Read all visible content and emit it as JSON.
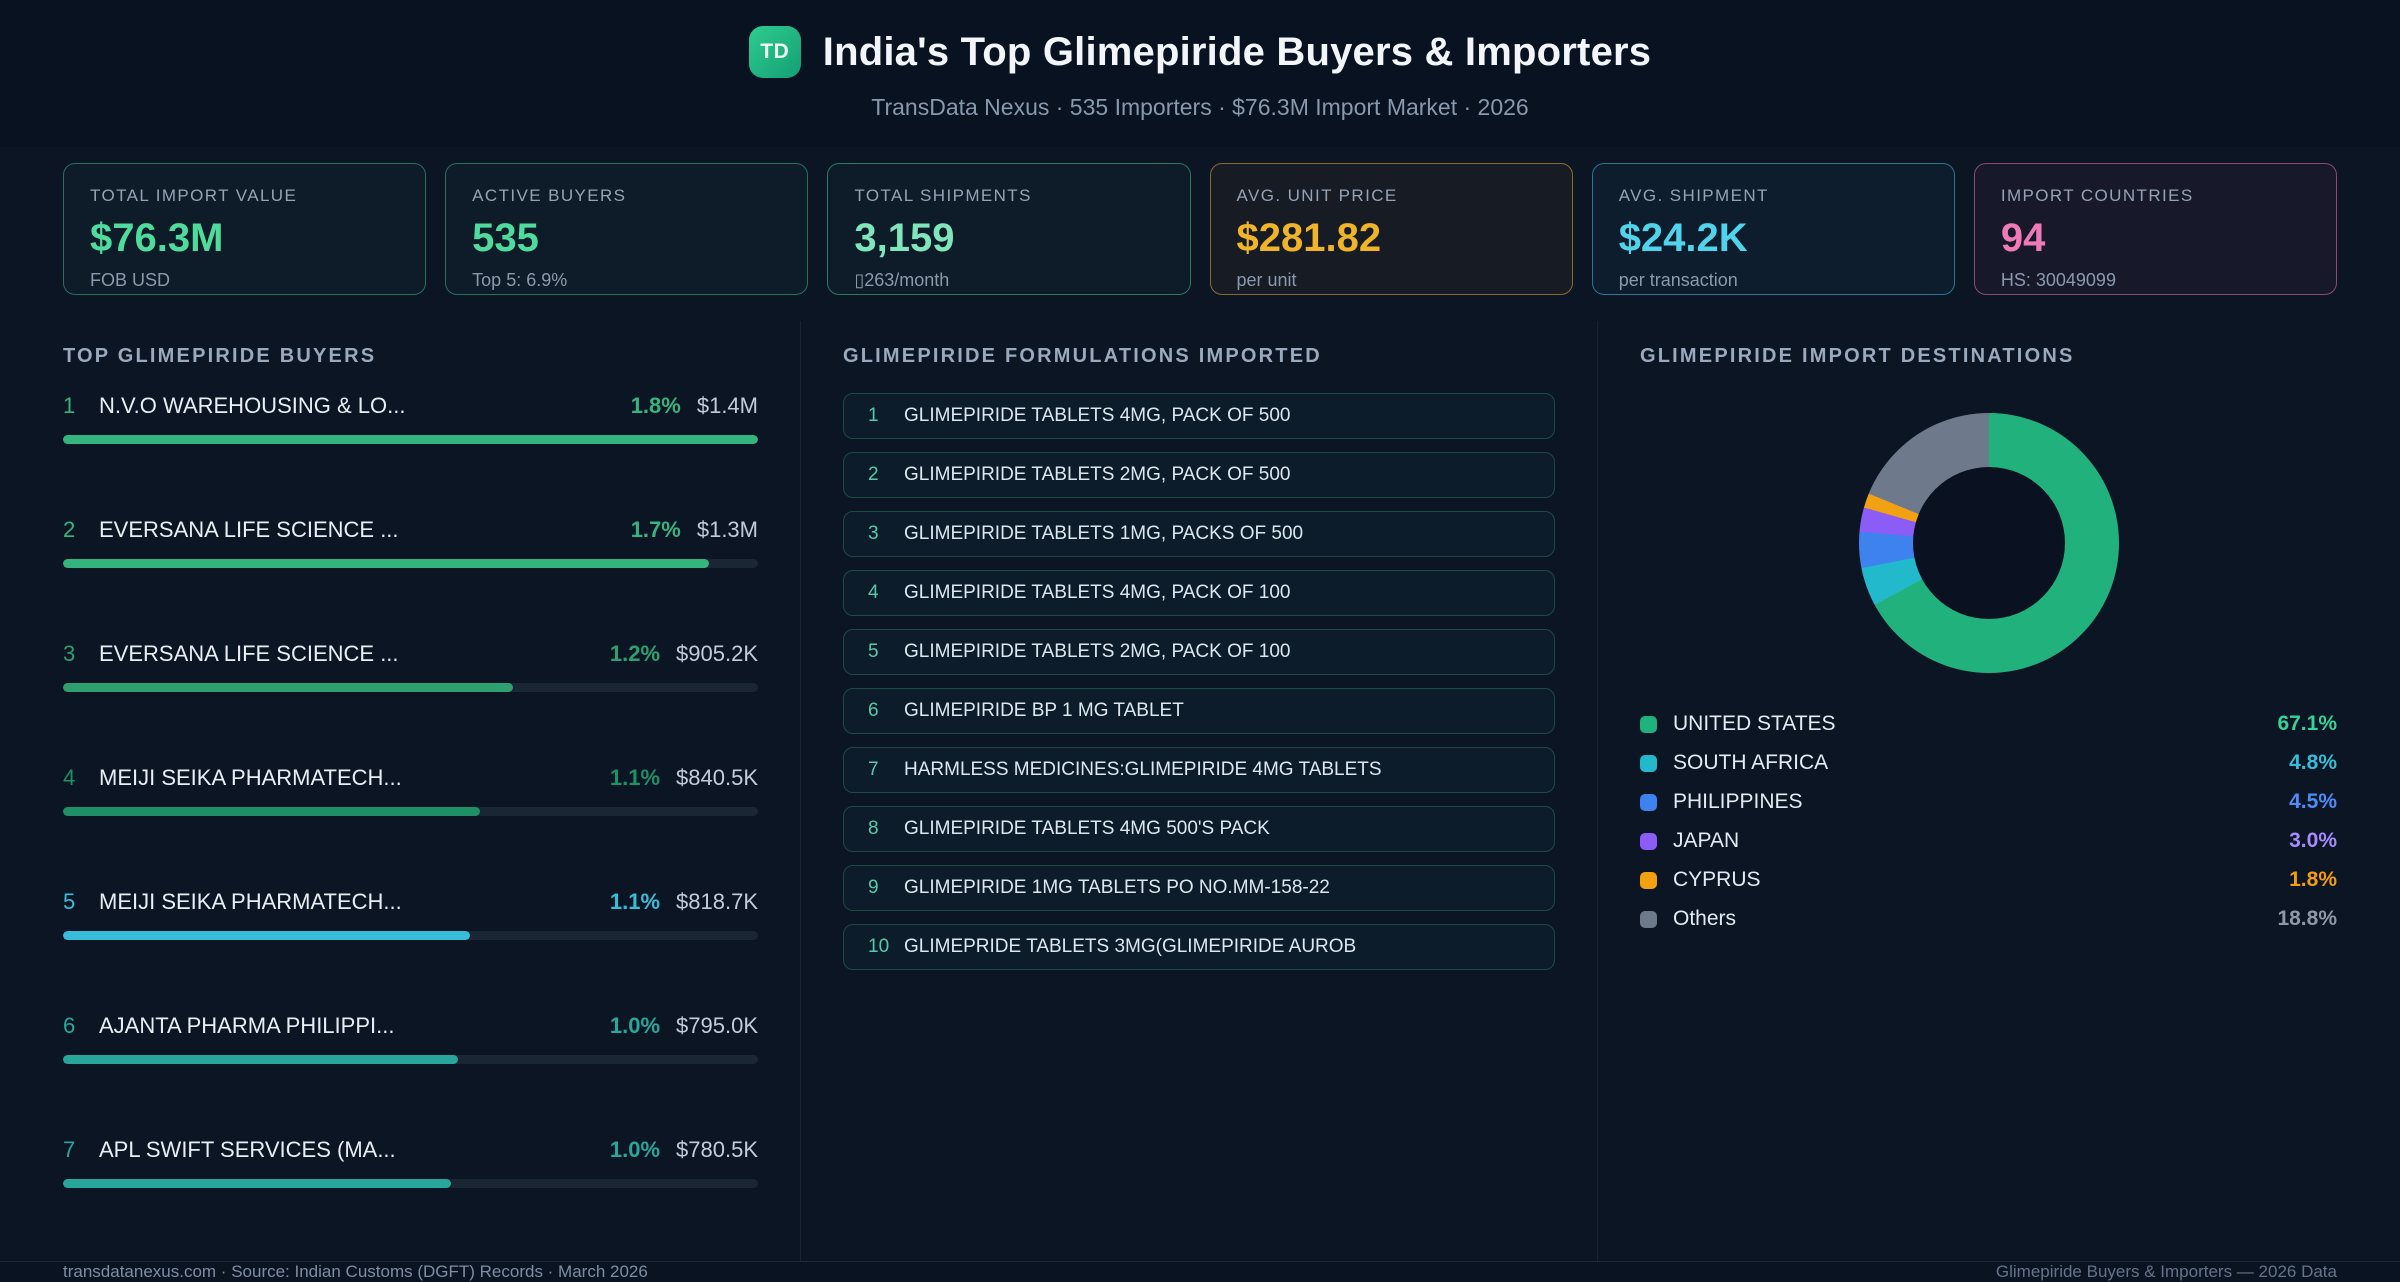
{
  "brand": {
    "logo_text": "TD",
    "accent_from": "#12b377",
    "accent_to": "#0cb7d0"
  },
  "header": {
    "title": "India's Top Glimepiride Buyers & Importers",
    "subtitle": "TransData Nexus · 535 Importers · $76.3M Import Market · 2026"
  },
  "stats": [
    {
      "label": "TOTAL IMPORT VALUE",
      "value": "$76.3M",
      "sub": "FOB USD",
      "value_color": "#4fdb9c",
      "border_color": "#27705c",
      "bg": "rgba(45,212,150,0.04)"
    },
    {
      "label": "ACTIVE BUYERS",
      "value": "535",
      "sub": "Top 5: 6.9%",
      "value_color": "#4fdb9c",
      "border_color": "#27705c",
      "bg": "rgba(45,212,150,0.04)"
    },
    {
      "label": "TOTAL SHIPMENTS",
      "value": "3,159",
      "sub": "▯263/month",
      "value_color": "#7fe5ba",
      "border_color": "#2a7a5e",
      "bg": "rgba(45,212,150,0.04)"
    },
    {
      "label": "AVG. UNIT PRICE",
      "value": "$281.82",
      "sub": "per unit",
      "value_color": "#f0b429",
      "border_color": "#8a6b2e",
      "bg": "rgba(240,180,41,0.05)"
    },
    {
      "label": "AVG. SHIPMENT",
      "value": "$24.2K",
      "sub": "per transaction",
      "value_color": "#4fd4ec",
      "border_color": "#27768e",
      "bg": "rgba(56,189,216,0.05)"
    },
    {
      "label": "IMPORT COUNTRIES",
      "value": "94",
      "sub": "HS: 30049099",
      "value_color": "#f07ab8",
      "border_color": "#8a4a6e",
      "bg": "rgba(236,121,180,0.05)"
    }
  ],
  "buyers": {
    "section_title": "TOP GLIMEPIRIDE BUYERS",
    "rows": [
      {
        "rank": "1",
        "name": "N.V.O WAREHOUSING & LO...",
        "pct": "1.8%",
        "value": "$1.4M",
        "bar_pct": 100,
        "color": "#35b57e"
      },
      {
        "rank": "2",
        "name": "EVERSANA LIFE SCIENCE ...",
        "pct": "1.7%",
        "value": "$1.3M",
        "bar_pct": 92.9,
        "color": "#35b57e"
      },
      {
        "rank": "3",
        "name": "EVERSANA LIFE SCIENCE ...",
        "pct": "1.2%",
        "value": "$905.2K",
        "bar_pct": 64.7,
        "color": "#2ea06f"
      },
      {
        "rank": "4",
        "name": "MEIJI SEIKA PHARMATECH...",
        "pct": "1.1%",
        "value": "$840.5K",
        "bar_pct": 60.0,
        "color": "#1e9066"
      },
      {
        "rank": "5",
        "name": "MEIJI SEIKA PHARMATECH...",
        "pct": "1.1%",
        "value": "$818.7K",
        "bar_pct": 58.5,
        "color": "#38bdd8"
      },
      {
        "rank": "6",
        "name": "AJANTA PHARMA PHILIPPI...",
        "pct": "1.0%",
        "value": "$795.0K",
        "bar_pct": 56.8,
        "color": "#27a79b"
      },
      {
        "rank": "7",
        "name": "APL SWIFT SERVICES (MA...",
        "pct": "1.0%",
        "value": "$780.5K",
        "bar_pct": 55.8,
        "color": "#27a79b"
      }
    ]
  },
  "formulations": {
    "section_title": "GLIMEPIRIDE FORMULATIONS IMPORTED",
    "items": [
      "GLIMEPIRIDE TABLETS 4MG, PACK OF 500",
      "GLIMEPIRIDE TABLETS 2MG, PACK OF 500",
      "GLIMEPIRIDE TABLETS 1MG, PACKS OF 500",
      "GLIMEPIRIDE TABLETS 4MG, PACK OF 100",
      "GLIMEPIRIDE TABLETS 2MG, PACK OF 100",
      "GLIMEPIRIDE BP 1 MG TABLET",
      "HARMLESS MEDICINES:GLIMEPIRIDE 4MG TABLETS",
      "GLIMEPIRIDE TABLETS 4MG 500'S PACK",
      "GLIMEPIRIDE 1MG TABLETS PO NO.MM-158-22",
      "GLIMEPRIDE TABLETS 3MG(GLIMEPIRIDE AUROB"
    ]
  },
  "destinations": {
    "section_title": "GLIMEPIRIDE IMPORT DESTINATIONS"
  },
  "chart_data": [
    {
      "type": "pie",
      "title": "GLIMEPIRIDE IMPORT DESTINATIONS",
      "donut": true,
      "legend_position": "bottom",
      "series": [
        {
          "label": "UNITED STATES",
          "value": 67.1,
          "color": "#21b17c",
          "text_color": "#34d399"
        },
        {
          "label": "SOUTH AFRICA",
          "value": 4.8,
          "color": "#23b9cd",
          "text_color": "#38bdd8"
        },
        {
          "label": "PHILIPPINES",
          "value": 4.5,
          "color": "#3e82f0",
          "text_color": "#4d8df7"
        },
        {
          "label": "JAPAN",
          "value": 3.0,
          "color": "#8b5cf6",
          "text_color": "#a78bfa"
        },
        {
          "label": "CYPRUS",
          "value": 1.8,
          "color": "#f2a113",
          "text_color": "#f59e0b"
        },
        {
          "label": "Others",
          "value": 18.8,
          "color": "#6e7a8b",
          "text_color": "#8d99a8"
        }
      ]
    },
    {
      "type": "bar",
      "title": "TOP GLIMEPIRIDE BUYERS",
      "categories": [
        "N.V.O WAREHOUSING & LO...",
        "EVERSANA LIFE SCIENCE ...",
        "EVERSANA LIFE SCIENCE ...",
        "MEIJI SEIKA PHARMATECH...",
        "MEIJI SEIKA PHARMATECH...",
        "AJANTA PHARMA PHILIPPI...",
        "APL SWIFT SERVICES (MA..."
      ],
      "values_usd": [
        "$1.4M",
        "$1.3M",
        "$905.2K",
        "$840.5K",
        "$818.7K",
        "$795.0K",
        "$780.5K"
      ],
      "share_pct": [
        1.8,
        1.7,
        1.2,
        1.1,
        1.1,
        1.0,
        1.0
      ]
    }
  ],
  "footer": {
    "left": "transdatanexus.com · Source: Indian Customs (DGFT) Records · March 2026",
    "right": "Glimepiride Buyers & Importers — 2026 Data"
  }
}
